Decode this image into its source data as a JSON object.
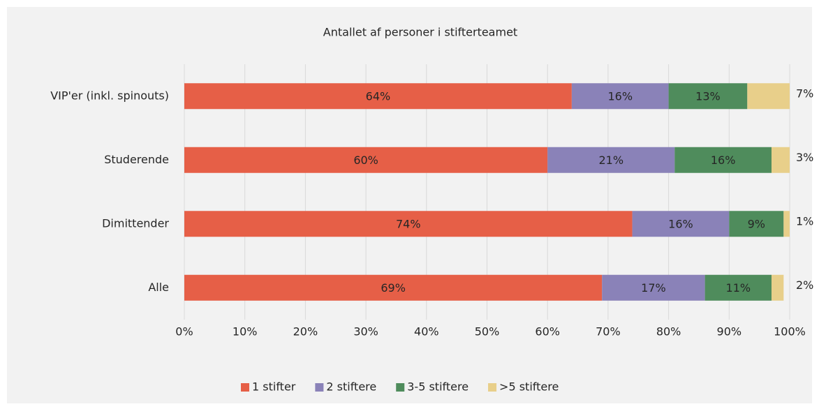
{
  "chart_data": {
    "type": "stacked_barh",
    "title": "Antallet af personer i stifterteamet",
    "categories": [
      "VIP'er (inkl. spinouts)",
      "Studerende",
      "Dimittender",
      "Alle"
    ],
    "series": [
      {
        "name": "1 stifter",
        "color": "#e65f47",
        "values": [
          64,
          60,
          74,
          69
        ],
        "value_labels": [
          "64%",
          "60%",
          "74%",
          "69%"
        ]
      },
      {
        "name": "2 stiftere",
        "color": "#8a82b8",
        "values": [
          16,
          21,
          16,
          17
        ],
        "value_labels": [
          "16%",
          "21%",
          "16%",
          "17%"
        ]
      },
      {
        "name": "3-5 stiftere",
        "color": "#4f8c5c",
        "values": [
          13,
          16,
          9,
          11
        ],
        "value_labels": [
          "13%",
          "16%",
          "9%",
          "11%"
        ]
      },
      {
        "name": ">5 stiftere",
        "color": "#e8cf8a",
        "values": [
          7,
          3,
          1,
          2
        ],
        "value_labels": [
          "7%",
          "3%",
          "1%",
          "2%"
        ]
      }
    ],
    "xlim": [
      0,
      100
    ],
    "xticks": [
      {
        "value": 0,
        "label": "0%"
      },
      {
        "value": 10,
        "label": "10%"
      },
      {
        "value": 20,
        "label": "20%"
      },
      {
        "value": 30,
        "label": "30%"
      },
      {
        "value": 40,
        "label": "40%"
      },
      {
        "value": 50,
        "label": "50%"
      },
      {
        "value": 60,
        "label": "60%"
      },
      {
        "value": 70,
        "label": "70%"
      },
      {
        "value": 80,
        "label": "80%"
      },
      {
        "value": 90,
        "label": "90%"
      },
      {
        "value": 100,
        "label": "100%"
      }
    ],
    "grid": true,
    "legend": "bottom"
  }
}
